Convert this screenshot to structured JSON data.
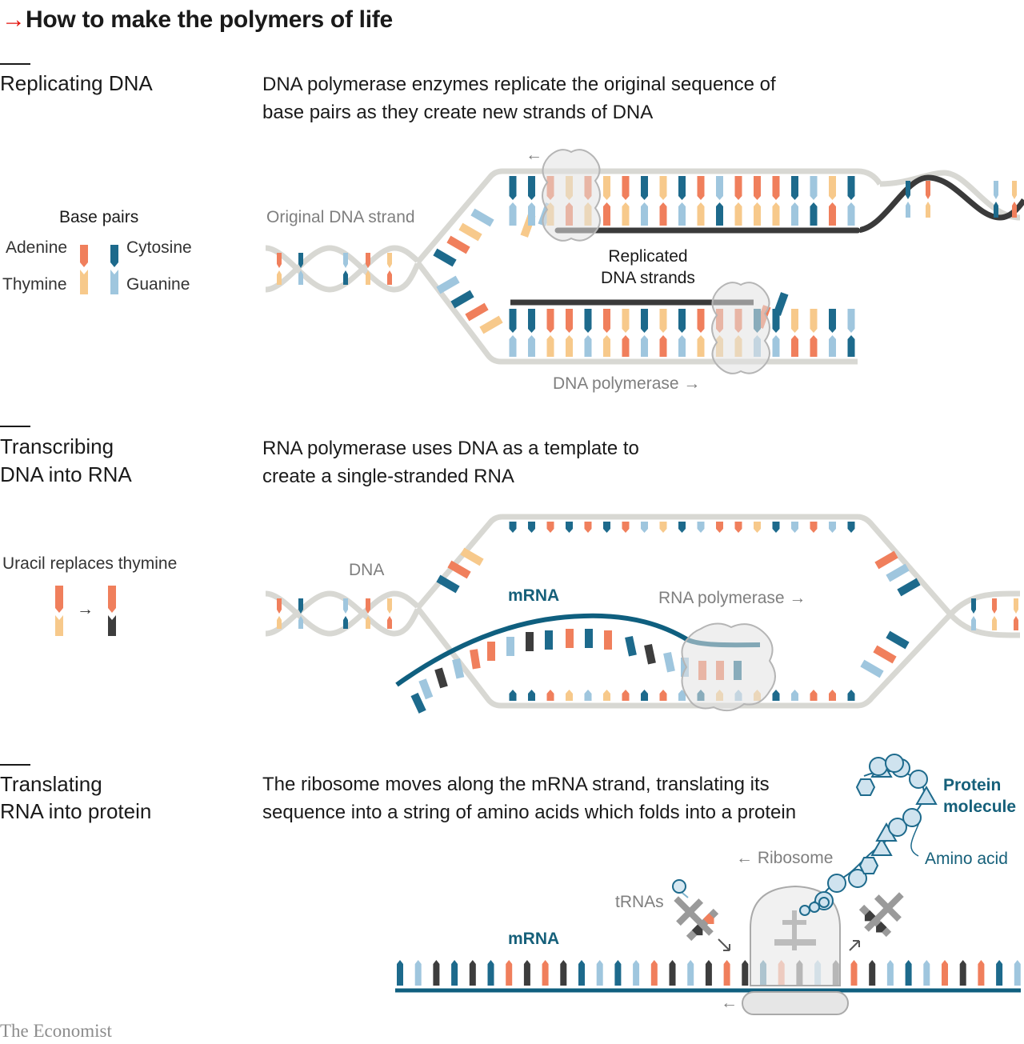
{
  "header": {
    "arrow": "→",
    "title": "How to make the polymers of life"
  },
  "sections": {
    "replicating": {
      "title": "Replicating DNA",
      "description": "DNA polymerase enzymes replicate the original sequence of base pairs as they create new strands of DNA",
      "labels": {
        "original_strand": "Original DNA strand",
        "replicated_line1": "Replicated",
        "replicated_line2": "DNA strands",
        "polymerase": "DNA polymerase →",
        "direction_arrow": "←"
      }
    },
    "transcribing": {
      "title_line1": "Transcribing",
      "title_line2": "DNA into RNA",
      "description": "RNA polymerase uses DNA as a template to create a single-stranded RNA",
      "labels": {
        "dna": "DNA",
        "mrna": "mRNA",
        "polymerase": "RNA polymerase →"
      }
    },
    "translating": {
      "title_line1": "Translating",
      "title_line2": "RNA into protein",
      "description": "The ribosome moves along the mRNA strand, translating its sequence into a string of amino acids which folds into a protein",
      "labels": {
        "protein_line1": "Protein",
        "protein_line2": "molecule",
        "amino_acid": "Amino acid",
        "ribosome": "← Ribosome",
        "trnas": "tRNAs",
        "mrna": "mRNA",
        "back_arrow": "←"
      }
    }
  },
  "legend": {
    "heading": "Base pairs",
    "adenine": "Adenine",
    "cytosine": "Cytosine",
    "thymine": "Thymine",
    "guanine": "Guanine",
    "uracil_heading": "Uracil replaces thymine",
    "uracil_arrow": "→"
  },
  "footer": "The Economist",
  "colors": {
    "adenine": "#f07f5c",
    "thymine": "#f7c98b",
    "cytosine": "#1d6a8c",
    "guanine": "#9fc6de",
    "uracil": "#3d3d3d",
    "backbone": "#d8d8d3",
    "new_strand": "#3a3a3a",
    "mrna": "#0f5f7f",
    "accent": "#e3120b"
  }
}
